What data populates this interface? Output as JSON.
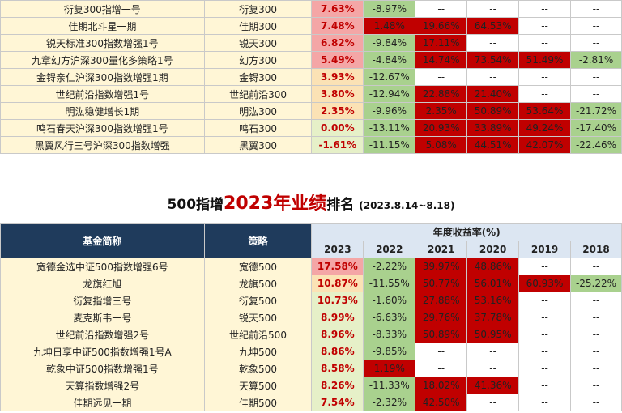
{
  "top_rows": [
    {
      "name": "衍复300指增一号",
      "strategy": "衍复300",
      "y2023": "7.63%",
      "y2022": "-8.97%",
      "y2021": "--",
      "y2020": "--",
      "y2019": "--",
      "y2018": "--"
    },
    {
      "name": "佳期北斗星一期",
      "strategy": "佳期300",
      "y2023": "7.48%",
      "y2022": "1.48%",
      "y2021": "19.66%",
      "y2020": "64.53%",
      "y2019": "--",
      "y2018": "--"
    },
    {
      "name": "锐天标准300指数增强1号",
      "strategy": "锐天300",
      "y2023": "6.82%",
      "y2022": "-9.84%",
      "y2021": "17.11%",
      "y2020": "--",
      "y2019": "--",
      "y2018": "--"
    },
    {
      "name": "九章幻方沪深300量化多策略1号",
      "strategy": "幻方300",
      "y2023": "5.49%",
      "y2022": "-4.84%",
      "y2021": "14.74%",
      "y2020": "73.54%",
      "y2019": "51.49%",
      "y2018": "-2.81%"
    },
    {
      "name": "金锝亲仁沪深300指数增强1期",
      "strategy": "金锝300",
      "y2023": "3.93%",
      "y2022": "-12.67%",
      "y2021": "--",
      "y2020": "--",
      "y2019": "--",
      "y2018": "--"
    },
    {
      "name": "世纪前沿指数增强1号",
      "strategy": "世纪前沿300",
      "y2023": "3.80%",
      "y2022": "-12.94%",
      "y2021": "22.88%",
      "y2020": "21.40%",
      "y2019": "--",
      "y2018": "--"
    },
    {
      "name": "明汯稳健增长1期",
      "strategy": "明汯300",
      "y2023": "2.35%",
      "y2022": "-9.96%",
      "y2021": "2.35%",
      "y2020": "50.89%",
      "y2019": "53.64%",
      "y2018": "-21.72%"
    },
    {
      "name": "鸣石春天沪深300指数增强1号",
      "strategy": "鸣石300",
      "y2023": "0.00%",
      "y2022": "-13.11%",
      "y2021": "20.93%",
      "y2020": "33.89%",
      "y2019": "49.24%",
      "y2018": "-17.40%"
    },
    {
      "name": "黑翼风行三号沪深300指数增强",
      "strategy": "黑翼300",
      "y2023": "-1.61%",
      "y2022": "-11.15%",
      "y2021": "5.08%",
      "y2020": "44.51%",
      "y2019": "42.07%",
      "y2018": "-22.46%"
    }
  ],
  "title": {
    "part1": "500指增",
    "part2": "2023年业绩",
    "part3": "排名",
    "period": "(2023.8.14~8.18)"
  },
  "header": {
    "name_col": "基金简称",
    "strategy_col": "策略",
    "returns_col": "年度收益率(%)",
    "years": [
      "2023",
      "2022",
      "2021",
      "2020",
      "2019",
      "2018"
    ]
  },
  "bottom_rows": [
    {
      "name": "宽德金选中证500指数增强6号",
      "strategy": "宽德500",
      "y2023": "17.58%",
      "y2022": "-2.22%",
      "y2021": "39.97%",
      "y2020": "48.86%",
      "y2019": "--",
      "y2018": "--"
    },
    {
      "name": "龙旗红旭",
      "strategy": "龙旗500",
      "y2023": "10.87%",
      "y2022": "-11.55%",
      "y2021": "50.77%",
      "y2020": "56.01%",
      "y2019": "60.93%",
      "y2018": "-25.22%"
    },
    {
      "name": "衍复指增三号",
      "strategy": "衍复500",
      "y2023": "10.73%",
      "y2022": "-1.60%",
      "y2021": "27.88%",
      "y2020": "53.16%",
      "y2019": "--",
      "y2018": "--"
    },
    {
      "name": "麦克斯韦一号",
      "strategy": "锐天500",
      "y2023": "8.99%",
      "y2022": "-6.63%",
      "y2021": "29.76%",
      "y2020": "37.78%",
      "y2019": "--",
      "y2018": "--"
    },
    {
      "name": "世纪前沿指数增强2号",
      "strategy": "世纪前沿500",
      "y2023": "8.96%",
      "y2022": "-8.33%",
      "y2021": "50.89%",
      "y2020": "50.95%",
      "y2019": "--",
      "y2018": "--"
    },
    {
      "name": "九坤日享中证500指数增强1号A",
      "strategy": "九坤500",
      "y2023": "8.86%",
      "y2022": "-9.85%",
      "y2021": "--",
      "y2020": "--",
      "y2019": "--",
      "y2018": "--"
    },
    {
      "name": "乾象中证500指数增强1号",
      "strategy": "乾象500",
      "y2023": "8.58%",
      "y2022": "1.19%",
      "y2021": "--",
      "y2020": "--",
      "y2019": "--",
      "y2018": "--"
    },
    {
      "name": "天算指数增强2号",
      "strategy": "天算500",
      "y2023": "8.26%",
      "y2022": "-11.33%",
      "y2021": "18.02%",
      "y2020": "41.36%",
      "y2019": "--",
      "y2018": "--"
    },
    {
      "name": "佳期远见一期",
      "strategy": "佳期500",
      "y2023": "7.54%",
      "y2022": "-2.32%",
      "y2021": "42.50%",
      "y2020": "--",
      "y2019": "--",
      "y2018": "--"
    }
  ],
  "colors": {
    "positive": "#c00000",
    "negative": "#a9d18e",
    "header": "#1f3b5c",
    "name_bg": "#fff6d6",
    "y2023_high": "#f4a6a6",
    "y2023_mid": "#fbe2b5",
    "y2023_low": "#e6f0c8"
  }
}
